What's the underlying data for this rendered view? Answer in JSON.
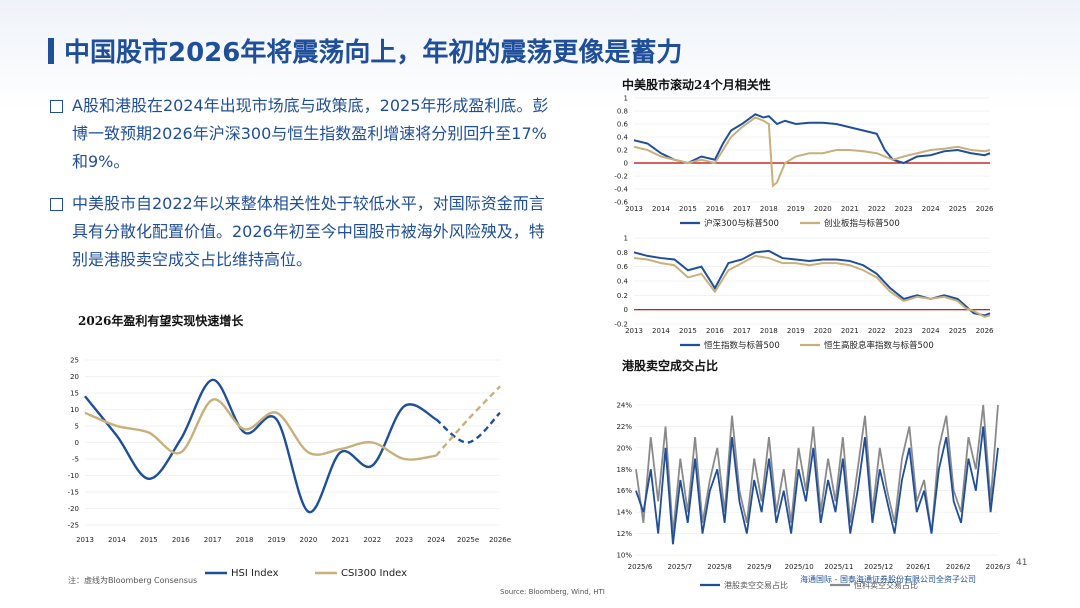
{
  "slide": {
    "title": "中国股市2026年将震荡向上，年初的震荡更像是蓄力",
    "bullets": [
      "A股和港股在2024年出现市场底与政策底，2025年形成盈利底。彭博一致预期2026年沪深300与恒生指数盈利增速将分别回升至17%和9%。",
      "中美股市自2022年以来整体相关性处于较低水平，对国际资金而言具有分散化配置价值。2026年初至今中国股市被海外风险殃及，特别是港股卖空成交占比维持高位。"
    ],
    "note": "注：虚线为Bloomberg Consensus",
    "source": "Source: Bloomberg, Wind, HTI",
    "page_number": "41",
    "footer": "海通国际 - 国泰海通证券股份有限公司全资子公司"
  },
  "chart_data": [
    {
      "type": "line",
      "title": "2026年盈利有望实现快速增长",
      "categories": [
        "2013",
        "2014",
        "2015",
        "2016",
        "2017",
        "2018",
        "2019",
        "2020",
        "2021",
        "2022",
        "2023",
        "2024",
        "2025e",
        "2026e"
      ],
      "ylim": [
        -25,
        25
      ],
      "yticks": [
        -25,
        -20,
        -15,
        -10,
        -5,
        0,
        5,
        10,
        15,
        20,
        25
      ],
      "series": [
        {
          "name": "HSI Index",
          "color": "#1f4e9a",
          "values": [
            14,
            2,
            -11,
            1,
            19,
            3,
            7,
            -21,
            -3,
            -7,
            11,
            7,
            0,
            9
          ],
          "forecast_from": 11
        },
        {
          "name": "CSI300 Index",
          "color": "#c8b07a",
          "values": [
            9,
            5,
            3,
            -3,
            13,
            4,
            9,
            -3,
            -2,
            0,
            -5,
            -4,
            7,
            17
          ],
          "forecast_from": 11
        }
      ],
      "legend": "bottom"
    },
    {
      "type": "line",
      "title": "中美股市滚动24个月相关性",
      "xticks": [
        "2013",
        "2014",
        "2015",
        "2016",
        "2017",
        "2018",
        "2019",
        "2020",
        "2021",
        "2022",
        "2023",
        "2024",
        "2025",
        "2026"
      ],
      "xlim": [
        2013,
        2026.2
      ],
      "ylim": [
        -0.6,
        1
      ],
      "yticks": [
        -0.6,
        -0.4,
        -0.2,
        0,
        0.2,
        0.4,
        0.6,
        0.8,
        1
      ],
      "series": [
        {
          "name": "沪深300与标普500",
          "color": "#1f4e9a",
          "x": [
            2013,
            2013.5,
            2014,
            2014.5,
            2015,
            2015.5,
            2016,
            2016.3,
            2016.6,
            2017,
            2017.5,
            2017.8,
            2018,
            2018.3,
            2018.6,
            2019,
            2019.5,
            2020,
            2020.5,
            2021,
            2021.5,
            2022,
            2022.3,
            2022.6,
            2023,
            2023.5,
            2024,
            2024.5,
            2025,
            2025.5,
            2026,
            2026.2
          ],
          "y": [
            0.35,
            0.3,
            0.15,
            0.05,
            0.0,
            0.1,
            0.05,
            0.3,
            0.5,
            0.6,
            0.75,
            0.7,
            0.72,
            0.6,
            0.65,
            0.6,
            0.62,
            0.62,
            0.6,
            0.55,
            0.5,
            0.45,
            0.2,
            0.05,
            0.0,
            0.1,
            0.12,
            0.18,
            0.2,
            0.15,
            0.12,
            0.15
          ]
        },
        {
          "name": "创业板指与标普500",
          "color": "#c8b07a",
          "x": [
            2013,
            2013.5,
            2014,
            2014.5,
            2015,
            2015.5,
            2016,
            2016.3,
            2016.6,
            2017,
            2017.5,
            2017.8,
            2018,
            2018.15,
            2018.3,
            2018.6,
            2019,
            2019.5,
            2020,
            2020.5,
            2021,
            2021.5,
            2022,
            2022.3,
            2022.6,
            2023,
            2023.5,
            2024,
            2024.5,
            2025,
            2025.5,
            2026,
            2026.2
          ],
          "y": [
            0.25,
            0.2,
            0.1,
            0.05,
            0.0,
            0.05,
            0.0,
            0.2,
            0.4,
            0.55,
            0.7,
            0.65,
            0.6,
            -0.35,
            -0.3,
            0.0,
            0.1,
            0.15,
            0.15,
            0.2,
            0.2,
            0.18,
            0.15,
            0.1,
            0.05,
            0.1,
            0.15,
            0.2,
            0.22,
            0.25,
            0.2,
            0.18,
            0.2
          ]
        }
      ],
      "reference_line": 0,
      "legend": "bottom"
    },
    {
      "type": "line",
      "xticks": [
        "2013",
        "2014",
        "2015",
        "2016",
        "2017",
        "2018",
        "2019",
        "2020",
        "2021",
        "2022",
        "2023",
        "2024",
        "2025",
        "2026"
      ],
      "xlim": [
        2013,
        2026.2
      ],
      "ylim": [
        -0.2,
        1
      ],
      "yticks": [
        -0.2,
        0,
        0.2,
        0.4,
        0.6,
        0.8,
        1
      ],
      "series": [
        {
          "name": "恒生指数与标普500",
          "color": "#1f4e9a",
          "x": [
            2013,
            2013.5,
            2014,
            2014.5,
            2015,
            2015.5,
            2016,
            2016.5,
            2017,
            2017.5,
            2018,
            2018.5,
            2019,
            2019.5,
            2020,
            2020.5,
            2021,
            2021.5,
            2022,
            2022.5,
            2023,
            2023.5,
            2024,
            2024.5,
            2025,
            2025.3,
            2025.6,
            2026,
            2026.2
          ],
          "y": [
            0.8,
            0.75,
            0.72,
            0.7,
            0.55,
            0.6,
            0.3,
            0.65,
            0.7,
            0.8,
            0.82,
            0.72,
            0.7,
            0.68,
            0.7,
            0.7,
            0.68,
            0.62,
            0.5,
            0.3,
            0.15,
            0.2,
            0.15,
            0.2,
            0.15,
            0.05,
            -0.05,
            -0.08,
            -0.05
          ]
        },
        {
          "name": "恒生高股息率指数与标普500",
          "color": "#c8b07a",
          "x": [
            2013,
            2013.5,
            2014,
            2014.5,
            2015,
            2015.5,
            2016,
            2016.5,
            2017,
            2017.5,
            2018,
            2018.5,
            2019,
            2019.5,
            2020,
            2020.5,
            2021,
            2021.5,
            2022,
            2022.5,
            2023,
            2023.5,
            2024,
            2024.5,
            2025,
            2025.3,
            2025.6,
            2026,
            2026.2
          ],
          "y": [
            0.72,
            0.7,
            0.65,
            0.62,
            0.45,
            0.5,
            0.25,
            0.55,
            0.65,
            0.75,
            0.72,
            0.65,
            0.65,
            0.62,
            0.65,
            0.65,
            0.62,
            0.55,
            0.45,
            0.25,
            0.12,
            0.18,
            0.15,
            0.18,
            0.12,
            0.02,
            -0.02,
            -0.1,
            -0.08
          ]
        }
      ],
      "reference_line": 0,
      "legend": "bottom"
    },
    {
      "type": "line",
      "title": "港股卖空成交占比",
      "xticks": [
        "2025/6",
        "2025/7",
        "2025/8",
        "2025/9",
        "2025/10",
        "2025/11",
        "2025/12",
        "2026/1",
        "2026/2",
        "2026/3"
      ],
      "ylim": [
        0.1,
        0.24
      ],
      "yticks": [
        "10%",
        "12%",
        "14%",
        "16%",
        "18%",
        "20%",
        "22%",
        "24%"
      ],
      "series": [
        {
          "name": "港股卖空交易占比",
          "color": "#1f4e9a",
          "values": [
            0.16,
            0.14,
            0.18,
            0.12,
            0.2,
            0.11,
            0.17,
            0.13,
            0.19,
            0.12,
            0.16,
            0.18,
            0.13,
            0.21,
            0.15,
            0.12,
            0.17,
            0.14,
            0.19,
            0.13,
            0.16,
            0.12,
            0.18,
            0.15,
            0.2,
            0.13,
            0.17,
            0.14,
            0.19,
            0.12,
            0.16,
            0.21,
            0.13,
            0.18,
            0.15,
            0.12,
            0.17,
            0.2,
            0.14,
            0.16,
            0.12,
            0.18,
            0.21,
            0.15,
            0.13,
            0.19,
            0.16,
            0.22,
            0.14,
            0.2
          ]
        },
        {
          "name": "恒科卖空交易占比",
          "color": "#8a8a8a",
          "values": [
            0.18,
            0.13,
            0.21,
            0.15,
            0.22,
            0.12,
            0.19,
            0.14,
            0.21,
            0.13,
            0.17,
            0.2,
            0.14,
            0.23,
            0.16,
            0.13,
            0.19,
            0.15,
            0.21,
            0.14,
            0.18,
            0.13,
            0.2,
            0.16,
            0.22,
            0.14,
            0.19,
            0.15,
            0.21,
            0.13,
            0.18,
            0.23,
            0.14,
            0.2,
            0.16,
            0.13,
            0.19,
            0.22,
            0.15,
            0.17,
            0.12,
            0.2,
            0.23,
            0.16,
            0.14,
            0.21,
            0.18,
            0.24,
            0.15,
            0.24
          ]
        }
      ],
      "legend": "bottom"
    }
  ]
}
